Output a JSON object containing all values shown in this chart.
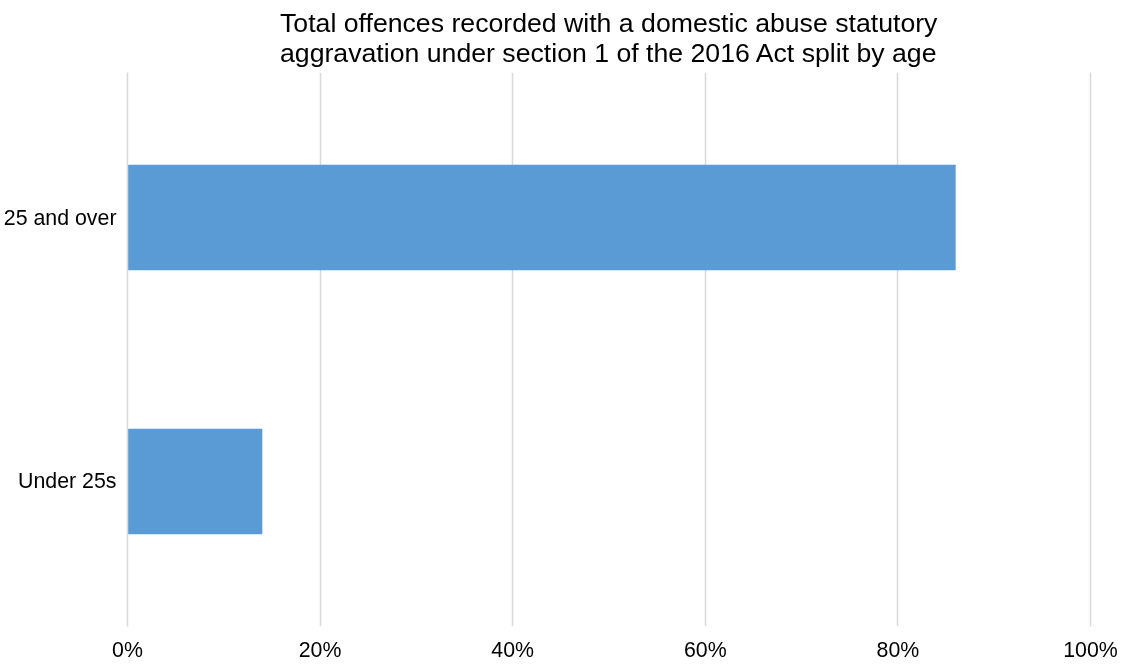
{
  "chart_data": {
    "type": "bar",
    "orientation": "horizontal",
    "title": "Total offences recorded with a domestic abuse statutory aggravation under section 1 of the 2016 Act split by age",
    "categories": [
      "25 and over",
      "Under 25s"
    ],
    "values": [
      86,
      14
    ],
    "color": "#5b9bd5",
    "xlim": [
      0,
      100
    ],
    "xticks": [
      {
        "value": 0,
        "label": "0%"
      },
      {
        "value": 20,
        "label": "20%"
      },
      {
        "value": 40,
        "label": "40%"
      },
      {
        "value": 60,
        "label": "60%"
      },
      {
        "value": 80,
        "label": "80%"
      },
      {
        "value": 100,
        "label": "100%"
      }
    ],
    "grid": "x"
  }
}
